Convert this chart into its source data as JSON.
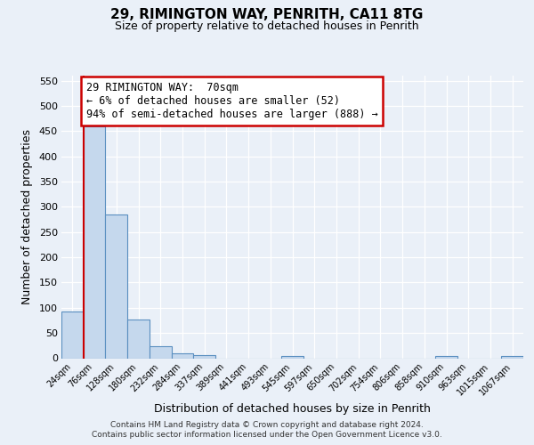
{
  "title": "29, RIMINGTON WAY, PENRITH, CA11 8TG",
  "subtitle": "Size of property relative to detached houses in Penrith",
  "xlabel": "Distribution of detached houses by size in Penrith",
  "ylabel": "Number of detached properties",
  "bar_labels": [
    "24sqm",
    "76sqm",
    "128sqm",
    "180sqm",
    "232sqm",
    "284sqm",
    "337sqm",
    "389sqm",
    "441sqm",
    "493sqm",
    "545sqm",
    "597sqm",
    "650sqm",
    "702sqm",
    "754sqm",
    "806sqm",
    "858sqm",
    "910sqm",
    "963sqm",
    "1015sqm",
    "1067sqm"
  ],
  "bar_values": [
    93,
    460,
    285,
    77,
    24,
    10,
    6,
    0,
    0,
    0,
    5,
    0,
    0,
    0,
    0,
    0,
    0,
    5,
    0,
    0,
    5
  ],
  "bar_color": "#c5d8ed",
  "bar_edge_color": "#5a8fc0",
  "background_color": "#eaf0f8",
  "grid_color": "#ffffff",
  "vline_color": "#cc0000",
  "annotation_text": "29 RIMINGTON WAY:  70sqm\n← 6% of detached houses are smaller (52)\n94% of semi-detached houses are larger (888) →",
  "annotation_box_color": "#ffffff",
  "annotation_box_edge": "#cc0000",
  "ylim_max": 560,
  "yticks": [
    0,
    50,
    100,
    150,
    200,
    250,
    300,
    350,
    400,
    450,
    500,
    550
  ],
  "footer_line1": "Contains HM Land Registry data © Crown copyright and database right 2024.",
  "footer_line2": "Contains public sector information licensed under the Open Government Licence v3.0."
}
